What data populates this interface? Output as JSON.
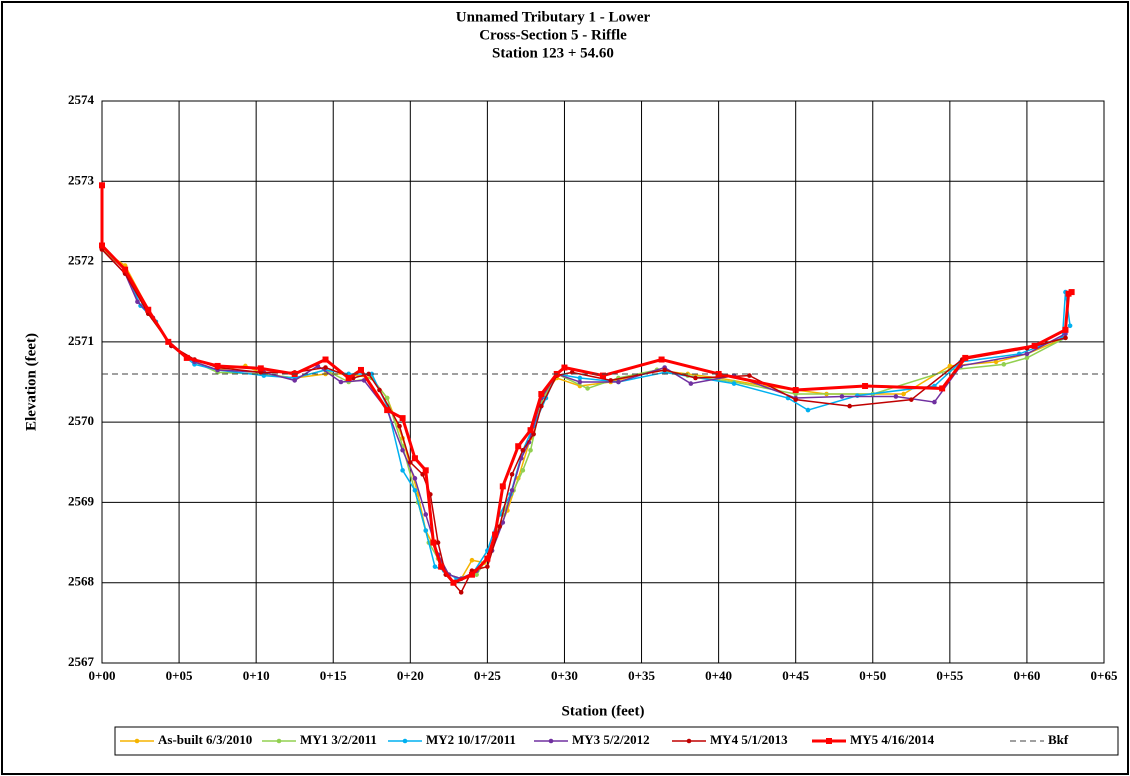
{
  "chart_data": {
    "type": "line",
    "title": [
      "Unnamed Tributary 1 - Lower",
      "Cross-Section 5 - Riffle",
      "Station 123 + 54.60"
    ],
    "xlabel": "Station (feet)",
    "ylabel": "Elevation (feet)",
    "xlim": [
      0,
      65
    ],
    "ylim": [
      2567,
      2574
    ],
    "xticks": [
      {
        "value": 0,
        "label": "0+00"
      },
      {
        "value": 5,
        "label": "0+05"
      },
      {
        "value": 10,
        "label": "0+10"
      },
      {
        "value": 15,
        "label": "0+15"
      },
      {
        "value": 20,
        "label": "0+20"
      },
      {
        "value": 25,
        "label": "0+25"
      },
      {
        "value": 30,
        "label": "0+30"
      },
      {
        "value": 35,
        "label": "0+35"
      },
      {
        "value": 40,
        "label": "0+40"
      },
      {
        "value": 45,
        "label": "0+45"
      },
      {
        "value": 50,
        "label": "0+50"
      },
      {
        "value": 55,
        "label": "0+55"
      },
      {
        "value": 60,
        "label": "0+60"
      },
      {
        "value": 65,
        "label": "0+65"
      }
    ],
    "yticks": [
      2567,
      2568,
      2569,
      2570,
      2571,
      2572,
      2573,
      2574
    ],
    "grid": true,
    "legend": "bottom",
    "series": [
      {
        "name": "As-built 6/3/2010",
        "color": "#f5b400",
        "width": 1.5,
        "marker": "circle",
        "x": [
          0,
          1.5,
          3.3,
          4.5,
          6,
          7.5,
          9.3,
          10.5,
          12.5,
          14.5,
          16,
          17.5,
          18.5,
          19.5,
          20.5,
          21,
          21.8,
          22.5,
          23.3,
          24,
          24.8,
          25.5,
          26.3,
          27,
          27.8,
          28.5,
          29.5,
          31,
          33,
          36,
          38,
          40,
          43,
          47,
          52,
          55,
          58,
          60,
          62.5
        ],
        "values": [
          2572.15,
          2571.95,
          2571.3,
          2570.95,
          2570.75,
          2570.65,
          2570.7,
          2570.6,
          2570.55,
          2570.6,
          2570.6,
          2570.55,
          2570.3,
          2569.8,
          2569.1,
          2568.65,
          2568.35,
          2568.1,
          2568.05,
          2568.28,
          2568.25,
          2568.55,
          2568.9,
          2569.3,
          2569.8,
          2570.3,
          2570.55,
          2570.45,
          2570.5,
          2570.65,
          2570.6,
          2570.55,
          2570.45,
          2570.35,
          2570.35,
          2570.7,
          2570.75,
          2570.85,
          2571.05
        ]
      },
      {
        "name": "MY1 3/2/2011",
        "color": "#92d050",
        "width": 1.5,
        "marker": "circle",
        "x": [
          0,
          1.5,
          3,
          4.5,
          6,
          7.5,
          10.5,
          12.5,
          14.5,
          16,
          17.5,
          18.5,
          19.5,
          20.5,
          21.2,
          21.8,
          22.5,
          23.3,
          24.3,
          25.3,
          26,
          26.7,
          27.3,
          27.8,
          28.5,
          29.5,
          31.5,
          33.5,
          36,
          38,
          41,
          45,
          50,
          55,
          58.5,
          60,
          62.5
        ],
        "values": [
          2572.15,
          2571.9,
          2571.35,
          2570.95,
          2570.75,
          2570.62,
          2570.6,
          2570.55,
          2570.65,
          2570.5,
          2570.55,
          2570.3,
          2569.7,
          2569.0,
          2568.5,
          2568.3,
          2568.1,
          2568.05,
          2568.1,
          2568.4,
          2568.85,
          2569.15,
          2569.4,
          2569.65,
          2570.25,
          2570.6,
          2570.42,
          2570.55,
          2570.65,
          2570.58,
          2570.5,
          2570.35,
          2570.35,
          2570.65,
          2570.72,
          2570.8,
          2571.05
        ]
      },
      {
        "name": "MY2 10/17/2011",
        "color": "#00b0f0",
        "width": 1.5,
        "marker": "circle",
        "x": [
          0,
          1.5,
          2.5,
          3.5,
          4.5,
          6,
          7.5,
          10.5,
          12.5,
          14.5,
          16,
          17.5,
          18.5,
          19.5,
          20.3,
          21,
          21.6,
          22.2,
          23,
          24,
          25,
          25.8,
          26.5,
          27.3,
          28,
          28.8,
          29.5,
          31,
          33.5,
          36.5,
          41,
          44.5,
          45.8,
          49,
          54,
          55.7,
          59.5,
          62.3,
          62.5,
          62.8
        ],
        "values": [
          2572.2,
          2571.9,
          2571.45,
          2571.25,
          2570.95,
          2570.72,
          2570.65,
          2570.58,
          2570.55,
          2570.65,
          2570.6,
          2570.6,
          2570.2,
          2569.4,
          2569.15,
          2568.65,
          2568.2,
          2568.15,
          2568.05,
          2568.1,
          2568.4,
          2568.85,
          2569.1,
          2569.65,
          2569.95,
          2570.3,
          2570.6,
          2570.55,
          2570.5,
          2570.62,
          2570.48,
          2570.3,
          2570.15,
          2570.33,
          2570.45,
          2570.75,
          2570.85,
          2571.05,
          2571.62,
          2571.2
        ]
      },
      {
        "name": "MY3 5/2/2012",
        "color": "#7030a0",
        "width": 1.5,
        "marker": "circle",
        "x": [
          0,
          1.5,
          2.3,
          3.3,
          4.5,
          6,
          7.5,
          10.5,
          12.5,
          14,
          15.5,
          17,
          18.5,
          19.5,
          20.3,
          21,
          21.8,
          22.5,
          23.3,
          24.3,
          25.3,
          26,
          26.6,
          27.2,
          27.7,
          28.5,
          29.5,
          31,
          33.5,
          36.5,
          38.2,
          41,
          45,
          48,
          51.5,
          54,
          55.7,
          60,
          62.5
        ],
        "values": [
          2572.15,
          2571.85,
          2571.5,
          2571.3,
          2570.95,
          2570.75,
          2570.65,
          2570.62,
          2570.52,
          2570.7,
          2570.5,
          2570.52,
          2570.15,
          2569.65,
          2569.3,
          2568.85,
          2568.35,
          2568.1,
          2568.05,
          2568.15,
          2568.4,
          2568.75,
          2569.15,
          2569.55,
          2569.75,
          2570.3,
          2570.6,
          2570.5,
          2570.5,
          2570.68,
          2570.48,
          2570.58,
          2570.3,
          2570.32,
          2570.32,
          2570.25,
          2570.7,
          2570.85,
          2571.1
        ]
      },
      {
        "name": "MY4 5/1/2013",
        "color": "#c00000",
        "width": 1.5,
        "marker": "circle",
        "x": [
          0,
          1.5,
          3,
          4.5,
          6,
          7.5,
          10.3,
          12.5,
          14.5,
          16.3,
          17.3,
          18,
          19.3,
          20,
          20.8,
          21.3,
          21.8,
          22.3,
          23.3,
          24,
          25,
          25.8,
          26.6,
          27.3,
          28,
          28.5,
          29.5,
          30.5,
          33,
          36.5,
          38.5,
          42,
          45,
          48.5,
          52.5,
          55.8,
          60,
          62.5
        ],
        "values": [
          2572.15,
          2571.85,
          2571.35,
          2570.95,
          2570.78,
          2570.68,
          2570.62,
          2570.62,
          2570.68,
          2570.55,
          2570.6,
          2570.4,
          2569.95,
          2569.5,
          2569.35,
          2569.1,
          2568.5,
          2568.1,
          2567.88,
          2568.15,
          2568.2,
          2568.7,
          2569.35,
          2569.65,
          2569.85,
          2570.2,
          2570.58,
          2570.62,
          2570.52,
          2570.65,
          2570.55,
          2570.58,
          2570.28,
          2570.2,
          2570.28,
          2570.78,
          2570.92,
          2571.05
        ]
      },
      {
        "name": "MY5 4/16/2014",
        "color": "#ff0000",
        "width": 3,
        "marker": "square",
        "x": [
          0,
          0,
          1.5,
          3,
          4.3,
          5.5,
          7.5,
          10.3,
          12.5,
          14.5,
          16,
          16.8,
          18.5,
          19.5,
          20.3,
          21,
          21.5,
          22,
          22.8,
          24,
          25,
          25.5,
          26,
          27,
          27.8,
          28.5,
          29.5,
          30,
          32.5,
          36.3,
          40,
          45,
          49.5,
          54.5,
          56,
          60.5,
          62.5,
          62.7,
          62.9
        ],
        "values": [
          2572.95,
          2572.2,
          2571.9,
          2571.4,
          2571.0,
          2570.8,
          2570.7,
          2570.67,
          2570.6,
          2570.78,
          2570.55,
          2570.65,
          2570.15,
          2570.05,
          2569.55,
          2569.4,
          2568.5,
          2568.2,
          2568.0,
          2568.1,
          2568.3,
          2568.6,
          2569.2,
          2569.7,
          2569.9,
          2570.35,
          2570.6,
          2570.68,
          2570.58,
          2570.78,
          2570.6,
          2570.4,
          2570.45,
          2570.42,
          2570.8,
          2570.95,
          2571.15,
          2571.6,
          2571.62
        ]
      },
      {
        "name": "Bkf",
        "color": "#404040",
        "width": 1,
        "dash": true,
        "x": [
          0,
          65
        ],
        "values": [
          2570.6,
          2570.6
        ]
      }
    ]
  }
}
